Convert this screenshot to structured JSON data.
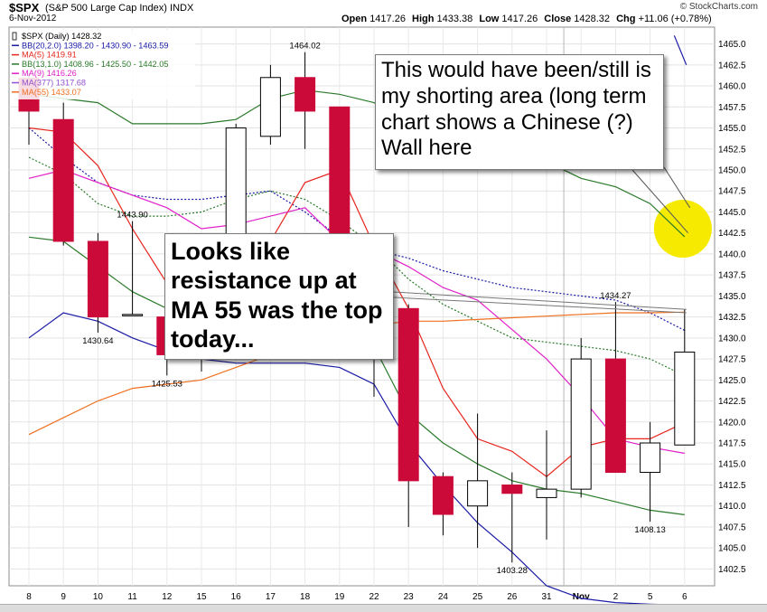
{
  "header": {
    "ticker": "$SPX",
    "name": "(S&P 500 Large Cap Index)",
    "exchange": "INDX",
    "date": "6-Nov-2012",
    "open_label": "Open",
    "open": "1417.26",
    "high_label": "High",
    "high": "1433.38",
    "low_label": "Low",
    "low": "1417.26",
    "close_label": "Close",
    "close": "1428.32",
    "chg_label": "Chg",
    "chg": "+11.06 (+0.78%)",
    "brand": "© StockCharts.com"
  },
  "legend": [
    {
      "text": "$SPX (Daily) 1428.32",
      "color": "#000000",
      "marker": "candle"
    },
    {
      "text": "BB(20,2.0) 1398.20 - 1430.90 - 1463.59",
      "color": "#1a1aa6",
      "marker": "line"
    },
    {
      "text": "MA(5) 1419.91",
      "color": "#e8261e",
      "marker": "line"
    },
    {
      "text": "BB(13,1.0) 1408.96 - 1425.50 - 1442.05",
      "color": "#2a7a2a",
      "marker": "line"
    },
    {
      "text": "MA(9) 1416.26",
      "color": "#e020c8",
      "marker": "line"
    },
    {
      "text": "MA(377) 1317.68",
      "color": "#9050d0",
      "marker": "line"
    },
    {
      "text": "MA(55) 1433.07",
      "color": "#f07020",
      "marker": "line"
    }
  ],
  "annotations": {
    "callout_top": "This would have been/still is my shorting area (long term chart shows a Chinese (?) Wall here",
    "callout_mid": "Looks like resistance up at MA 55 was the top today..."
  },
  "chart_data": {
    "type": "candlestick",
    "title": "$SPX (S&P 500 Large Cap Index) INDX",
    "ylim": [
      1400.5,
      1467.0
    ],
    "yticks": [
      1402.5,
      1405.0,
      1407.5,
      1410.0,
      1412.5,
      1415.0,
      1417.5,
      1420.0,
      1422.5,
      1425.0,
      1427.5,
      1430.0,
      1432.5,
      1435.0,
      1437.5,
      1440.0,
      1442.5,
      1445.0,
      1447.5,
      1450.0,
      1452.5,
      1455.0,
      1457.5,
      1460.0,
      1462.5,
      1465.0
    ],
    "categories": [
      "8",
      "9",
      "10",
      "11",
      "12",
      "15",
      "16",
      "17",
      "18",
      "19",
      "22",
      "23",
      "24",
      "25",
      "26",
      "31",
      "1",
      "2",
      "5",
      "6"
    ],
    "xlabels": [
      "8",
      "9",
      "10",
      "11",
      "12",
      "15",
      "16",
      "17",
      "18",
      "19",
      "22",
      "23",
      "24",
      "25",
      "26",
      "31",
      "Nov",
      "2",
      "5",
      "6"
    ],
    "candles": [
      {
        "o": 1460.9,
        "h": 1461.5,
        "l": 1453.0,
        "c": 1457.0,
        "dir": "down"
      },
      {
        "o": 1456.0,
        "h": 1458.0,
        "l": 1441.0,
        "c": 1441.5,
        "dir": "down"
      },
      {
        "o": 1441.5,
        "h": 1442.5,
        "l": 1430.64,
        "c": 1432.5,
        "dir": "down"
      },
      {
        "o": 1432.8,
        "h": 1443.9,
        "l": 1432.8,
        "c": 1432.8,
        "dir": "up"
      },
      {
        "o": 1432.5,
        "h": 1433.0,
        "l": 1425.53,
        "c": 1428.0,
        "dir": "down"
      },
      {
        "o": 1429.0,
        "h": 1431.0,
        "l": 1426.0,
        "c": 1430.0,
        "dir": "up"
      },
      {
        "o": 1435.0,
        "h": 1455.5,
        "l": 1434.0,
        "c": 1455.0,
        "dir": "up"
      },
      {
        "o": 1454.0,
        "h": 1462.5,
        "l": 1453.0,
        "c": 1461.0,
        "dir": "up"
      },
      {
        "o": 1461.0,
        "h": 1464.02,
        "l": 1452.5,
        "c": 1457.0,
        "dir": "down"
      },
      {
        "o": 1457.5,
        "h": 1457.5,
        "l": 1440.0,
        "c": 1441.0,
        "dir": "down"
      },
      {
        "o": 1431.5,
        "h": 1434.0,
        "l": 1423.0,
        "c": 1431.0,
        "dir": "up"
      },
      {
        "o": 1433.5,
        "h": 1434.0,
        "l": 1407.5,
        "c": 1413.0,
        "dir": "down"
      },
      {
        "o": 1413.5,
        "h": 1414.0,
        "l": 1406.5,
        "c": 1409.0,
        "dir": "down"
      },
      {
        "o": 1410.0,
        "h": 1421.0,
        "l": 1405.0,
        "c": 1413.0,
        "dir": "up"
      },
      {
        "o": 1412.5,
        "h": 1414.0,
        "l": 1403.28,
        "c": 1411.5,
        "dir": "down"
      },
      {
        "o": 1411.0,
        "h": 1419.0,
        "l": 1406.0,
        "c": 1412.0,
        "dir": "up"
      },
      {
        "o": 1412.0,
        "h": 1430.0,
        "l": 1411.0,
        "c": 1427.5,
        "dir": "up"
      },
      {
        "o": 1427.5,
        "h": 1434.27,
        "l": 1414.0,
        "c": 1414.0,
        "dir": "down"
      },
      {
        "o": 1414.0,
        "h": 1420.0,
        "l": 1408.13,
        "c": 1417.5,
        "dir": "up"
      },
      {
        "o": 1417.26,
        "h": 1433.38,
        "l": 1417.26,
        "c": 1428.32,
        "dir": "up"
      }
    ],
    "value_labels": [
      {
        "i": 2,
        "value": "1430.64",
        "pos": "below"
      },
      {
        "i": 3,
        "value": "1443.90",
        "pos": "above"
      },
      {
        "i": 4,
        "value": "1425.53",
        "pos": "below"
      },
      {
        "i": 8,
        "value": "1464.02",
        "pos": "above"
      },
      {
        "i": 14,
        "value": "1403.28",
        "pos": "below"
      },
      {
        "i": 17,
        "value": "1434.27",
        "pos": "above"
      },
      {
        "i": 18,
        "value": "1408.13",
        "pos": "below"
      }
    ],
    "series": [
      {
        "name": "BB(20,2.0) upper",
        "color": "#1a1aa6",
        "dash": "2,2",
        "values": [
          1455.0,
          1451.5,
          1448.5,
          1447.0,
          1446.5,
          1446.5,
          1447.0,
          1447.5,
          1445.0,
          1442.0,
          1440.5,
          1439.5,
          1438.0,
          1437.0,
          1436.0,
          1435.5,
          1435.0,
          1434.5,
          1433.0,
          1430.9
        ]
      },
      {
        "name": "BB(20,2.0) lower",
        "color": "#1a1aa6",
        "dash": "",
        "values": [
          1430.0,
          1433.0,
          1432.0,
          1430.0,
          1428.5,
          1427.5,
          1427.0,
          1427.0,
          1427.0,
          1426.5,
          1424.5,
          1417.5,
          1412.5,
          1408.0,
          1404.5,
          1400.5,
          1399.0,
          1398.5,
          1398.3,
          1398.2
        ]
      },
      {
        "name": "MA(5)",
        "color": "#e8261e",
        "dash": "",
        "values": [
          1455.0,
          1454.5,
          1450.5,
          1443.0,
          1436.5,
          1433.5,
          1434.0,
          1441.5,
          1448.5,
          1450.0,
          1441.0,
          1433.5,
          1424.0,
          1418.0,
          1416.5,
          1413.5,
          1417.0,
          1418.0,
          1418.0,
          1419.91
        ]
      },
      {
        "name": "BB(13,1.0) upper",
        "color": "#2a7a2a",
        "dash": "",
        "values": [
          1459.0,
          1458.5,
          1458.0,
          1455.5,
          1455.5,
          1455.5,
          1456.0,
          1458.5,
          1459.5,
          1459.0,
          1458.0,
          1456.0,
          1455.0,
          1453.5,
          1452.5,
          1451.0,
          1449.0,
          1448.0,
          1446.0,
          1442.05
        ]
      },
      {
        "name": "BB(13,1.0) middle",
        "color": "#2a7a2a",
        "dash": "2,2",
        "values": [
          1451.5,
          1449.5,
          1446.0,
          1444.5,
          1444.5,
          1445.0,
          1446.5,
          1447.5,
          1446.5,
          1444.0,
          1441.0,
          1437.0,
          1434.0,
          1432.0,
          1430.0,
          1429.5,
          1429.0,
          1428.5,
          1427.5,
          1425.5
        ]
      },
      {
        "name": "BB(13,1.0) lower",
        "color": "#2a7a2a",
        "dash": "",
        "values": [
          1442.0,
          1441.5,
          1438.5,
          1435.5,
          1433.5,
          1433.0,
          1434.0,
          1434.5,
          1433.5,
          1432.5,
          1429.0,
          1421.0,
          1417.5,
          1415.0,
          1413.0,
          1412.0,
          1411.5,
          1410.5,
          1409.5,
          1408.96
        ]
      },
      {
        "name": "MA(9)",
        "color": "#e020c8",
        "dash": "",
        "values": [
          1449.0,
          1450.0,
          1448.5,
          1447.0,
          1445.5,
          1443.0,
          1443.5,
          1444.5,
          1445.5,
          1441.5,
          1440.5,
          1438.5,
          1436.0,
          1434.5,
          1431.0,
          1427.5,
          1423.0,
          1418.0,
          1417.0,
          1416.26
        ]
      },
      {
        "name": "MA(55)",
        "color": "#f07020",
        "dash": "",
        "values": [
          1418.5,
          1420.5,
          1422.5,
          1424.0,
          1424.5,
          1425.0,
          1426.5,
          1428.0,
          1429.5,
          1431.0,
          1431.5,
          1432.0,
          1432.0,
          1432.2,
          1432.4,
          1432.6,
          1432.8,
          1433.0,
          1433.0,
          1433.07
        ]
      }
    ],
    "ma377_visible": {
      "name": "MA(377)",
      "color": "#1a1aa6",
      "values": [
        1466.0,
        1462.5
      ]
    },
    "highlight_circle": {
      "x_index": 18.95,
      "y": 1443.0,
      "color": "#f5ea00"
    },
    "grid": true
  }
}
